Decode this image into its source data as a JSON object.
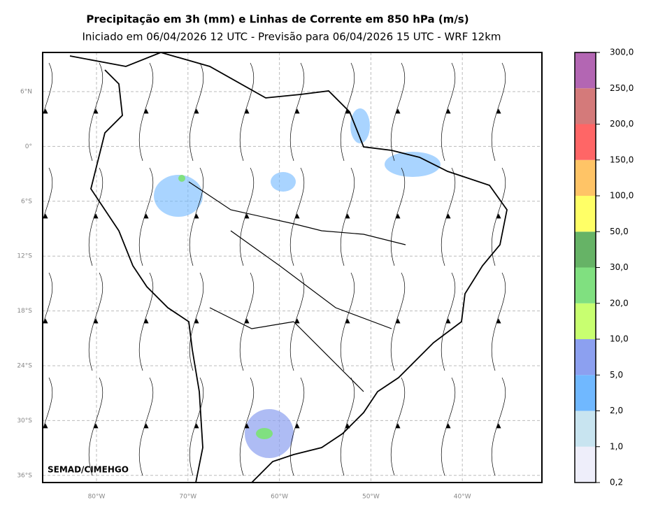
{
  "header": {
    "title": "Precipitação em 3h (mm) e Linhas de Corrente em 850 hPa (m/s)",
    "subtitle": "Iniciado em 06/04/2026 12 UTC - Previsão para 06/04/2026 15 UTC - WRF 12km"
  },
  "map": {
    "lat_labels": [
      "6°N",
      "0°",
      "6°S",
      "12°S",
      "18°S",
      "24°S",
      "30°S",
      "36°S"
    ],
    "lon_labels": [
      "80°W",
      "70°W",
      "60°W",
      "50°W",
      "40°W"
    ],
    "credit": "SEMAD/CIMEHGO"
  },
  "colorbar": {
    "labels": [
      "0,2",
      "1,0",
      "2,0",
      "5,0",
      "10,0",
      "20,0",
      "30,0",
      "50,0",
      "100,0",
      "150,0",
      "200,0",
      "250,0",
      "300,0"
    ],
    "colors": [
      "#eeeefa",
      "#c8e4f0",
      "#70b8ff",
      "#8ca0f0",
      "#c8ff70",
      "#80e080",
      "#66b366",
      "#ffff66",
      "#ffc466",
      "#ff6666",
      "#d47a7a",
      "#b366b3"
    ]
  }
}
